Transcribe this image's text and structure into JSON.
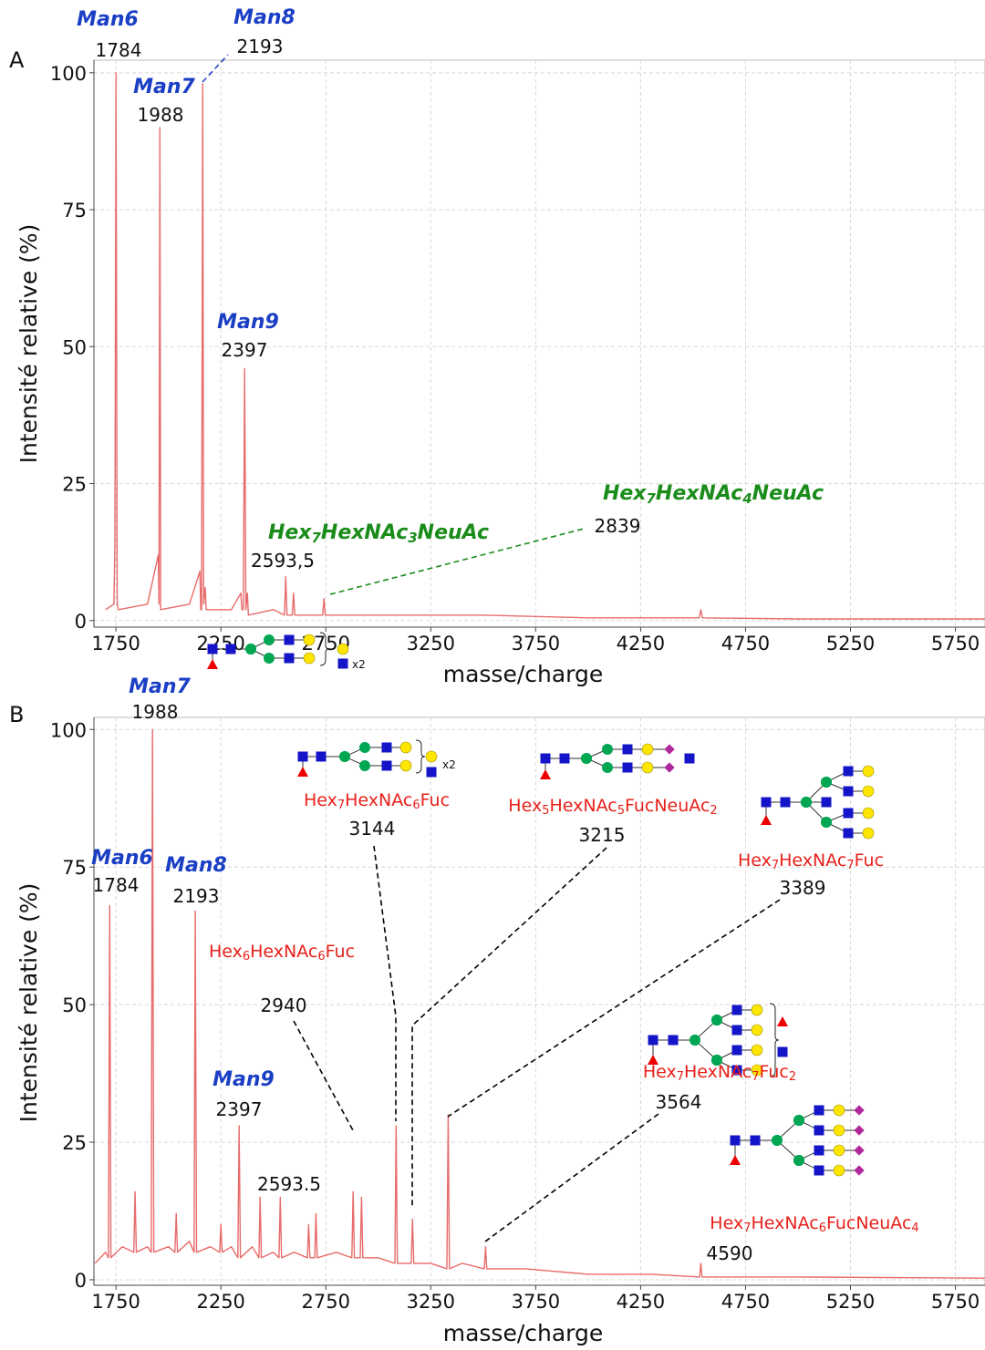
{
  "chart_data": [
    {
      "type": "line",
      "panel": "A",
      "xlabel": "masse/charge",
      "ylabel": "Intensité relative (%)",
      "xlim": [
        1645,
        5891
      ],
      "ylim": [
        -1.2,
        102.3
      ],
      "xticks": [
        1750,
        2250,
        2750,
        3250,
        3750,
        4250,
        4750,
        5250,
        5750
      ],
      "yticks": [
        0,
        25,
        50,
        75,
        100
      ],
      "grid": true,
      "x": [
        1700,
        1740,
        1745,
        1750,
        1756,
        1762,
        1900,
        1952,
        1955,
        1959,
        1963,
        2100,
        2150,
        2154,
        2158,
        2163,
        2168,
        2175,
        2180,
        2300,
        2345,
        2350,
        2357,
        2363,
        2369,
        2376,
        2381,
        2500,
        2553,
        2559,
        2565,
        2590,
        2596,
        2602,
        2735,
        2741,
        2747,
        2900,
        3100,
        3500,
        4000,
        4530,
        4537,
        4544,
        5000,
        5890
      ],
      "series": [
        {
          "color": "#e86b6b",
          "values": [
            2,
            3,
            14,
            100,
            3,
            2,
            3,
            12,
            3,
            90,
            2,
            3,
            9,
            2,
            2,
            98,
            3,
            6,
            2,
            2,
            5,
            2,
            2,
            46,
            2,
            5,
            1,
            2,
            1,
            8,
            1,
            1,
            5,
            1,
            1,
            4,
            1,
            1,
            1,
            1,
            0.5,
            0.5,
            2,
            0.5,
            0.3,
            0.3
          ]
        }
      ],
      "annotations": [
        {
          "name": [
            "Man6"
          ],
          "mz": 1784,
          "color": "#1a3fc4"
        },
        {
          "name": [
            "Man8"
          ],
          "mz": 2193,
          "color": "#1a3fc4"
        },
        {
          "name": [
            "Man7"
          ],
          "mz": 1988,
          "color": "#1a3fc4"
        },
        {
          "name": [
            "Man9"
          ],
          "mz": 2397,
          "color": "#1a3fc4"
        },
        {
          "name": [
            "Hex",
            "7",
            "HexNAc",
            "3",
            "NeuAc"
          ],
          "mz": {
            "value": 2593.5,
            "label": "2593,5"
          },
          "color": "#1a8c1a"
        },
        {
          "name": [
            "Hex",
            "7",
            "HexNAc",
            "4",
            "NeuAc"
          ],
          "mz": 2839,
          "color": "#1a8c1a"
        }
      ]
    },
    {
      "type": "line",
      "panel": "B",
      "xlabel": "masse/charge",
      "ylabel": "Intensité relative (%)",
      "xlim": [
        1645,
        5891
      ],
      "ylim": [
        -1,
        102.2
      ],
      "xticks": [
        1750,
        2250,
        2750,
        3250,
        3750,
        4250,
        4750,
        5250,
        5750
      ],
      "yticks": [
        0,
        25,
        50,
        75,
        100
      ],
      "grid": true,
      "x": [
        1650,
        1700,
        1714,
        1720,
        1726,
        1780,
        1835,
        1841,
        1847,
        1900,
        1918,
        1924,
        1930,
        2000,
        2031,
        2037,
        2043,
        2100,
        2122,
        2128,
        2134,
        2200,
        2244,
        2250,
        2256,
        2300,
        2331,
        2337,
        2343,
        2400,
        2431,
        2437,
        2443,
        2500,
        2527,
        2533,
        2539,
        2600,
        2662,
        2668,
        2674,
        2697,
        2703,
        2709,
        2800,
        2874,
        2880,
        2886,
        2914,
        2920,
        2926,
        3000,
        3079,
        3085,
        3091,
        3157,
        3163,
        3169,
        3250,
        3327,
        3333,
        3339,
        3400,
        3505,
        3511,
        3517,
        3700,
        4000,
        4300,
        4531,
        4537,
        4543,
        5000,
        5890
      ],
      "series": [
        {
          "color": "#e86b6b",
          "values": [
            3,
            5,
            4,
            68,
            4,
            6,
            5,
            16,
            5,
            6,
            5,
            100,
            5,
            6,
            5,
            12,
            5,
            7,
            5,
            67,
            5,
            6,
            5,
            10,
            5,
            6,
            4,
            28,
            4,
            6,
            4,
            15,
            4,
            5,
            4,
            15,
            4,
            5,
            4,
            10,
            4,
            4,
            12,
            4,
            5,
            4,
            16,
            4,
            4,
            15,
            4,
            4,
            3,
            28,
            3,
            3,
            11,
            3,
            3,
            2,
            30,
            2,
            3,
            2,
            6,
            2,
            2,
            1,
            1,
            0.5,
            3,
            0.5,
            0.5,
            0.3
          ]
        }
      ],
      "annotations": [
        {
          "name": [
            "Man7"
          ],
          "mz": 1988,
          "color": "#1a3fc4"
        },
        {
          "name": [
            "Man6"
          ],
          "mz": 1784,
          "color": "#1a3fc4"
        },
        {
          "name": [
            "Man8"
          ],
          "mz": 2193,
          "color": "#1a3fc4"
        },
        {
          "name": [
            "Man9"
          ],
          "mz": 2397,
          "color": "#1a3fc4"
        },
        {
          "mz": 2593.5
        },
        {
          "name": [
            "Hex",
            "6",
            "HexNAc",
            "6",
            "Fuc"
          ],
          "mz": 2940,
          "color": "#e8201a",
          "note": "x2"
        },
        {
          "name": [
            "Hex",
            "7",
            "HexNAc",
            "6",
            "Fuc"
          ],
          "mz": 3144,
          "color": "#e8201a",
          "note": "x2"
        },
        {
          "name": [
            "Hex",
            "5",
            "HexNAc",
            "5",
            "FucNeuAc",
            "2"
          ],
          "mz": 3215,
          "color": "#e8201a"
        },
        {
          "name": [
            "Hex",
            "7",
            "HexNAc",
            "7",
            "Fuc"
          ],
          "mz": 3389,
          "color": "#e8201a"
        },
        {
          "name": [
            "Hex",
            "7",
            "HexNAc",
            "7",
            "Fuc",
            "2"
          ],
          "mz": 3564,
          "color": "#e8201a"
        },
        {
          "name": [
            "Hex",
            "7",
            "HexNAc",
            "6",
            "FucNeuAc",
            "4"
          ],
          "mz": 4590,
          "color": "#e8201a"
        }
      ]
    }
  ]
}
